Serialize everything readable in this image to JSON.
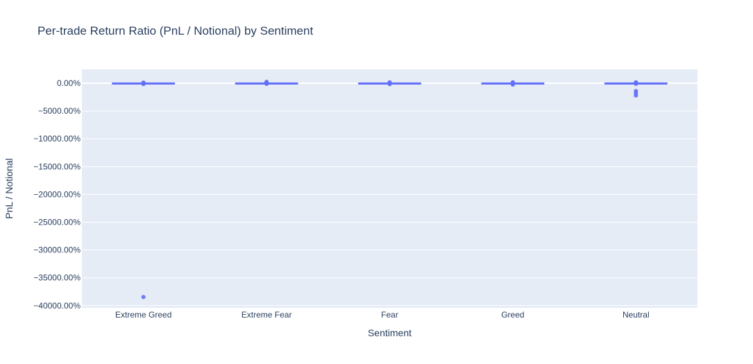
{
  "chart_data": {
    "type": "box",
    "title": "Per-trade Return Ratio (PnL / Notional) by Sentiment",
    "xlabel": "Sentiment",
    "ylabel": "PnL / Notional",
    "categories": [
      "Extreme Greed",
      "Extreme Fear",
      "Fear",
      "Greed",
      "Neutral"
    ],
    "y_tick_values": [
      0,
      -50,
      -100,
      -150,
      -200,
      -250,
      -300,
      -350,
      -400
    ],
    "y_tick_labels": [
      "0.00%",
      "−5000.00%",
      "−10000.00%",
      "−15000.00%",
      "−20000.00%",
      "−25000.00%",
      "−30000.00%",
      "−35000.00%",
      "−40000.00%"
    ],
    "ylim": [
      -404,
      25
    ],
    "grid": true,
    "legend": "none",
    "series": [
      {
        "values": [
          {
            "category": "Extreme Greed",
            "box": [
              -0.1,
              0,
              0.1
            ],
            "outliers": [
              1.2,
              0.6,
              -0.8,
              -1.5,
              -384.5
            ]
          },
          {
            "category": "Extreme Fear",
            "box": [
              -0.1,
              0,
              0.1
            ],
            "outliers": [
              2.6,
              1.4,
              -0.6,
              -1.2
            ]
          },
          {
            "category": "Fear",
            "box": [
              -0.1,
              0,
              0.1
            ],
            "outliers": [
              1.6,
              0.8,
              -0.8,
              -1.6
            ]
          },
          {
            "category": "Greed",
            "box": [
              -0.1,
              0,
              0.1
            ],
            "outliers": [
              1.8,
              0.8,
              -1.2,
              -2.4
            ]
          },
          {
            "category": "Neutral",
            "box": [
              -0.1,
              0,
              0.1
            ],
            "outliers": [
              1.8,
              0.9,
              -1.2,
              -14.0,
              -18.0,
              -22.0
            ]
          }
        ]
      }
    ],
    "colors": {
      "plot_bg": "#e5ecf6",
      "grid": "#ffffff",
      "trace": "#636efa",
      "text": "#2a3f5f"
    }
  }
}
